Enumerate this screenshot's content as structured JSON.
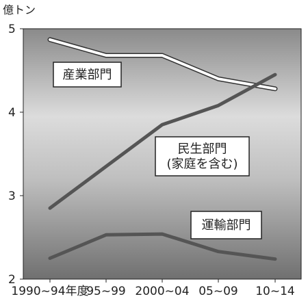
{
  "chart_data": {
    "type": "line",
    "y_unit": "億トン",
    "categories": [
      "1990~94年度",
      "95~99",
      "2000~04",
      "05~09",
      "10~14"
    ],
    "ylim": [
      2,
      5
    ],
    "yticks": [
      2,
      3,
      4,
      5
    ],
    "background": "gray gradient (dark at bottom)",
    "series": [
      {
        "name": "産業部門",
        "values": [
          4.87,
          4.68,
          4.68,
          4.4,
          4.28
        ],
        "color": "#ffffff",
        "outline": "#333333"
      },
      {
        "name": "民生部門(家庭を含む)",
        "values": [
          2.85,
          3.35,
          3.85,
          4.08,
          4.45
        ],
        "color": "#555555"
      },
      {
        "name": "運輸部門",
        "values": [
          2.25,
          2.53,
          2.54,
          2.33,
          2.24
        ],
        "color": "#555555"
      }
    ],
    "labels": [
      {
        "lines": [
          "産業部門"
        ]
      },
      {
        "lines": [
          "民生部門",
          "(家庭を含む)"
        ]
      },
      {
        "lines": [
          "運輸部門"
        ]
      }
    ]
  }
}
